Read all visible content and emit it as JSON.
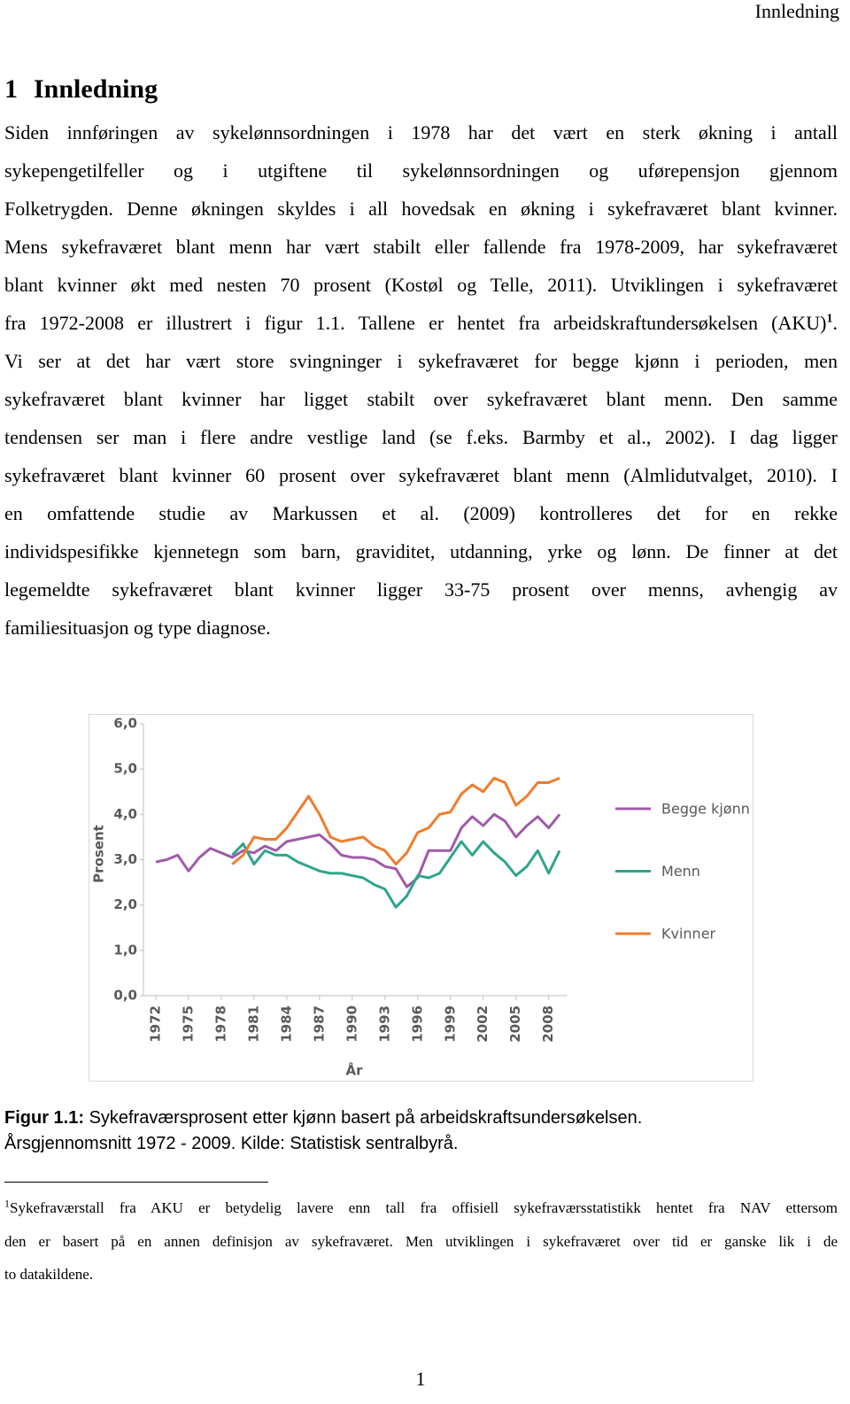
{
  "header": {
    "running_title": "Innledning"
  },
  "heading": {
    "number": "1",
    "title": "Innledning"
  },
  "paragraph": {
    "lines": [
      "Siden innføringen av sykelønnsordningen i 1978 har det vært en sterk økning i antall",
      "sykepengetilfeller og i utgiftene til sykelønnsordningen og uførepensjon gjennom",
      "Folketrygden. Denne økningen skyldes i all hovedsak en økning i sykefraværet blant kvinner.",
      "Mens sykefraværet blant menn har vært stabilt eller fallende fra 1978-2009, har sykefraværet",
      "blant kvinner økt med nesten 70 prosent (Kostøl og Telle, 2011). Utviklingen i sykefraværet",
      "fra 1972-2008 er illustrert i figur 1.1. Tallene er hentet fra arbeidskraftundersøkelsen (AKU)",
      "Vi ser at det har vært store svingninger i sykefraværet for begge kjønn i perioden, men",
      "sykefraværet blant kvinner har ligget stabilt over sykefraværet blant menn. Den samme",
      "tendensen ser man i flere andre vestlige land (se f.eks. Barmby et al., 2002). I dag ligger",
      "sykefraværet blant kvinner 60 prosent over sykefraværet blant menn (Almlidutvalget, 2010). I",
      "en omfattende studie av Markussen et al. (2009) kontrolleres det for en rekke",
      "individspesifikke kjennetegn som barn, graviditet, utdanning, yrke og lønn. De finner at det",
      "legemeldte sykefraværet blant kvinner ligger 33-75 prosent over menns, avhengig av",
      "familiesituasjon og type diagnose."
    ],
    "footnote_mark": "1",
    "after_mark": "."
  },
  "chart_data": {
    "type": "line",
    "x_label": "År",
    "y_label": "Prosent",
    "categories": [
      "1972",
      null,
      null,
      "1975",
      null,
      null,
      "1978",
      null,
      null,
      "1981",
      null,
      null,
      "1984",
      null,
      null,
      "1987",
      null,
      null,
      "1990",
      null,
      null,
      "1993",
      null,
      null,
      "1996",
      null,
      null,
      "1999",
      null,
      null,
      "2002",
      null,
      null,
      "2005",
      null,
      null,
      "2008",
      null
    ],
    "ylim": [
      0,
      6
    ],
    "yticks": [
      {
        "value": 0,
        "label": "0,0"
      },
      {
        "value": 1,
        "label": "1,0"
      },
      {
        "value": 2,
        "label": "2,0"
      },
      {
        "value": 3,
        "label": "3,0"
      },
      {
        "value": 4,
        "label": "4,0"
      },
      {
        "value": 5,
        "label": "5,0"
      },
      {
        "value": 6,
        "label": "6,0"
      }
    ],
    "grid": false,
    "legend": "right",
    "series": [
      {
        "name": "Begge kjønn",
        "color": "#a05aaa",
        "values": [
          2.95,
          3.0,
          3.1,
          2.75,
          3.05,
          3.25,
          3.15,
          3.05,
          3.2,
          3.15,
          3.3,
          3.2,
          3.4,
          3.45,
          3.5,
          3.55,
          3.35,
          3.1,
          3.05,
          3.05,
          3.0,
          2.85,
          2.8,
          2.4,
          2.6,
          3.2,
          3.2,
          3.2,
          3.7,
          3.95,
          3.75,
          4.0,
          3.85,
          3.5,
          3.75,
          3.95,
          3.7,
          4.0
        ]
      },
      {
        "name": "Menn",
        "color": "#2ea58c",
        "values": [
          null,
          null,
          null,
          null,
          null,
          null,
          null,
          3.1,
          3.35,
          2.9,
          3.2,
          3.1,
          3.1,
          2.95,
          2.85,
          2.75,
          2.7,
          2.7,
          2.65,
          2.6,
          2.45,
          2.35,
          1.95,
          2.2,
          2.65,
          2.6,
          2.7,
          3.05,
          3.4,
          3.1,
          3.4,
          3.15,
          2.95,
          2.65,
          2.85,
          3.2,
          2.7,
          3.2
        ]
      },
      {
        "name": "Kvinner",
        "color": "#f07c2c",
        "values": [
          null,
          null,
          null,
          null,
          null,
          null,
          null,
          2.9,
          3.1,
          3.5,
          3.45,
          3.45,
          3.7,
          4.05,
          4.4,
          4.0,
          3.5,
          3.4,
          3.45,
          3.5,
          3.3,
          3.2,
          2.9,
          3.15,
          3.6,
          3.7,
          4.0,
          4.05,
          4.45,
          4.65,
          4.5,
          4.8,
          4.7,
          4.2,
          4.4,
          4.7,
          4.7,
          4.8
        ]
      }
    ]
  },
  "caption": {
    "label": "Figur 1.1:",
    "line1": "Sykefraværsprosent etter kjønn basert på arbeidskraftsundersøkelsen.",
    "line2": "Årsgjennomsnitt 1972 - 2009. Kilde: Statistisk sentralbyrå."
  },
  "footnote": {
    "mark": "1",
    "lines": [
      "Sykefraværstall fra AKU er betydelig lavere enn tall fra offisiell sykefraværsstatistikk hentet fra NAV ettersom",
      "den er basert på en annen definisjon av sykefraværet. Men utviklingen i sykefraværet over tid er ganske lik i de",
      "to datakildene."
    ]
  },
  "page_number": "1"
}
